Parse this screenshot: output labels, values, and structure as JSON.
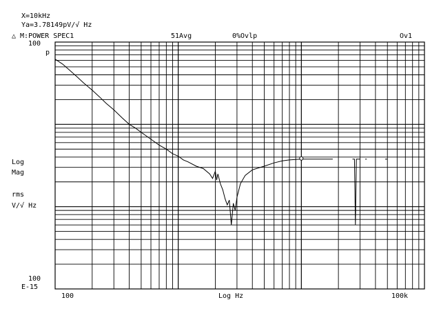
{
  "header": {
    "marker_x": "X=10kHz",
    "marker_y": "Ya=3.78149pV/√ Hz",
    "trace_label": "△ M:POWER SPEC1",
    "averages": "51Avg",
    "overload_pct": "0%Ovlp",
    "overload_flag": "Ov1"
  },
  "y_axis": {
    "top_value": "100",
    "top_unit": "p",
    "label_line1": "Log",
    "label_line2": "Mag",
    "label_line3": "rms",
    "label_line4": "V/√ Hz",
    "bottom_value": "100",
    "bottom_unit": "E-15"
  },
  "x_axis": {
    "left_value": "100",
    "center_label": "Log Hz",
    "right_value": "100k"
  },
  "chart_data": {
    "type": "line",
    "x_scale": "log",
    "y_scale": "log",
    "xlim": [
      100,
      100000
    ],
    "ylim": [
      1e-13,
      1e-10
    ],
    "xlabel": "Log Hz",
    "ylabel": "Log Mag rms V/√ Hz",
    "grid": true,
    "marker": {
      "x": 10000,
      "y": 3.78149e-12
    },
    "series": [
      {
        "x": [
          100,
          115,
          130,
          150,
          170,
          200,
          230,
          260,
          300,
          350,
          400,
          450,
          500,
          600,
          700,
          800,
          900,
          1000,
          1100,
          1200,
          1400,
          1600,
          1800,
          1900,
          2000,
          2050,
          2100,
          2200,
          2300,
          2400,
          2500,
          2600,
          2700,
          2800,
          2900,
          3000,
          3200,
          3500,
          4000,
          5000,
          6000,
          7000,
          8000,
          9000,
          10000,
          12000,
          14000,
          16000,
          18000
        ],
        "y": [
          6.2e-11,
          5.4e-11,
          4.6e-11,
          3.8e-11,
          3.2e-11,
          2.6e-11,
          2.15e-11,
          1.8e-11,
          1.5e-11,
          1.2e-11,
          1e-11,
          9e-12,
          8e-12,
          6.6e-12,
          5.6e-12,
          5e-12,
          4.4e-12,
          4.1e-12,
          3.7e-12,
          3.5e-12,
          3.1e-12,
          2.9e-12,
          2.5e-12,
          2.2e-12,
          2.7e-12,
          2.1e-12,
          2.5e-12,
          1.9e-12,
          1.6e-12,
          1.25e-12,
          1.05e-12,
          1.2e-12,
          6e-13,
          1.1e-12,
          9e-13,
          1.3e-12,
          1.9e-12,
          2.4e-12,
          2.8e-12,
          3.1e-12,
          3.4e-12,
          3.6e-12,
          3.7e-12,
          3.75e-12,
          3.78e-12,
          3.78e-12,
          3.78e-12,
          3.78e-12,
          3.78e-12
        ]
      },
      {
        "x": [
          26000,
          27000,
          27500,
          28000,
          29000,
          30000
        ],
        "y": [
          3.78e-12,
          3.78e-12,
          6e-13,
          3.78e-12,
          3.78e-12,
          3.78e-12
        ]
      }
    ],
    "fragments": [
      {
        "x": [
          33000,
          34000
        ],
        "y": [
          3.78e-12,
          3.78e-12
        ]
      },
      {
        "x": [
          48000,
          50000
        ],
        "y": [
          3.78e-12,
          3.78e-12
        ]
      }
    ]
  }
}
